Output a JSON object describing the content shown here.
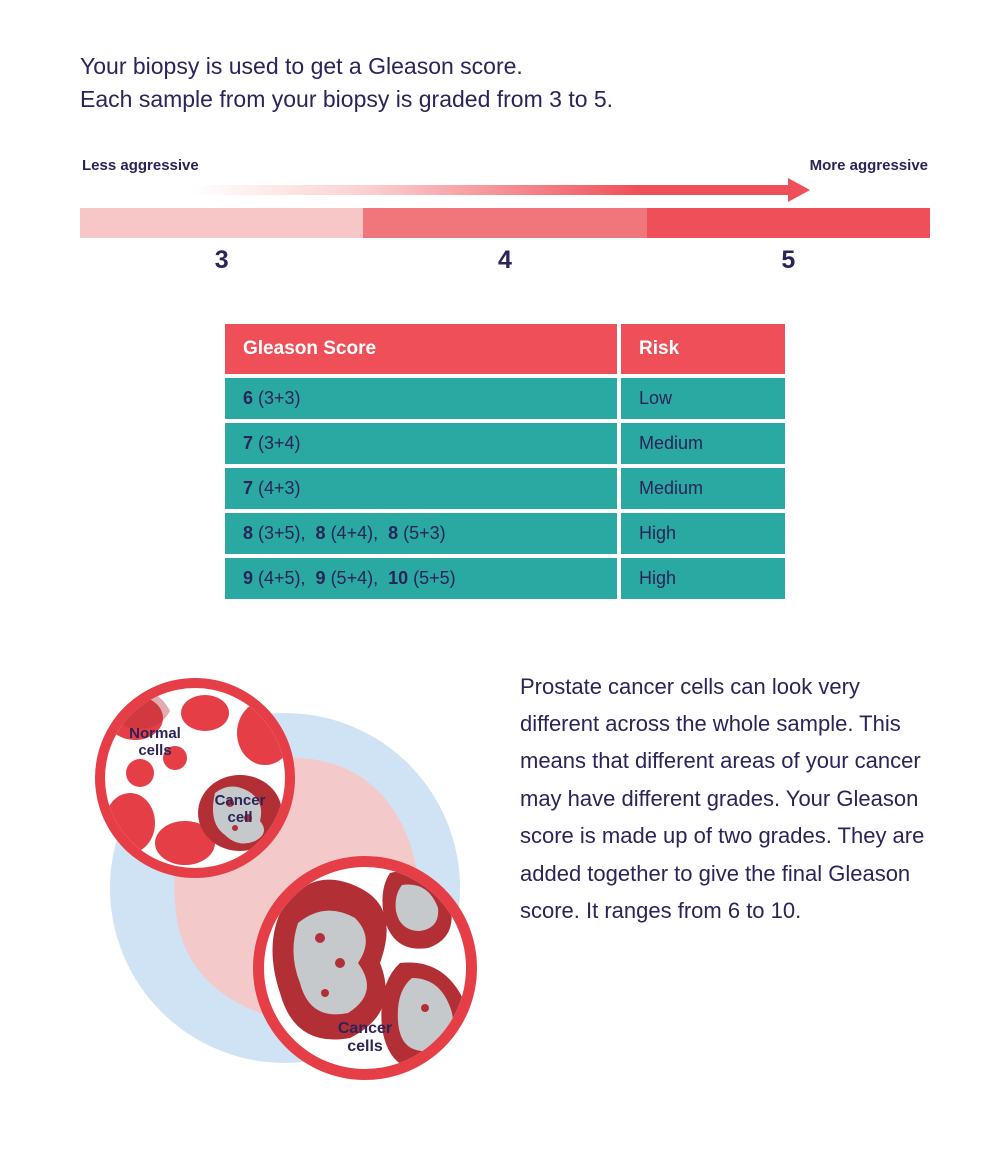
{
  "intro": {
    "line1": "Your biopsy is used to get a Gleason score.",
    "line2": "Each sample from your biopsy is graded from 3 to 5."
  },
  "scale": {
    "left_label": "Less aggressive",
    "right_label": "More aggressive",
    "arrow_gradient_start": "#ffffff",
    "arrow_gradient_mid": "#fbcfd0",
    "arrow_gradient_end": "#ef4f58",
    "segments": [
      {
        "num": "3",
        "color": "#f7c6c7"
      },
      {
        "num": "4",
        "color": "#f1767b"
      },
      {
        "num": "5",
        "color": "#ef4f58"
      }
    ]
  },
  "table": {
    "header_bg": "#ef4f58",
    "header_color": "#ffffff",
    "row_bg": "#2aa9a3",
    "row_color": "#2a2458",
    "col_score": "Gleason Score",
    "col_risk": "Risk",
    "rows": [
      {
        "score_html": "<span class='b'>6</span> (3+3)",
        "risk": "Low"
      },
      {
        "score_html": "<span class='b'>7</span> (3+4)",
        "risk": "Medium"
      },
      {
        "score_html": "<span class='b'>7</span> (4+3)",
        "risk": "Medium"
      },
      {
        "score_html": "<span class='b'>8</span> (3+5),&nbsp; <span class='b'>8</span> (4+4),&nbsp; <span class='b'>8</span> (5+3)",
        "risk": "High"
      },
      {
        "score_html": "<span class='b'>9</span> (4+5),&nbsp; <span class='b'>9</span> (5+4),&nbsp; <span class='b'>10</span> (5+5)",
        "risk": "High"
      }
    ]
  },
  "illustration": {
    "bg_blue": "#cfe3f4",
    "tissue_pink": "#f4c9c9",
    "ring_red": "#e63e47",
    "ring_inner": "#ffffff",
    "cell_red": "#e63e47",
    "cell_darkred": "#b32f36",
    "cell_grey": "#c6c9cc",
    "label_normal_l1": "Normal",
    "label_normal_l2": "cells",
    "label_cancer1_l1": "Cancer",
    "label_cancer1_l2": "cell",
    "label_cancer2_l1": "Cancer",
    "label_cancer2_l2": "cells"
  },
  "explanation": "Prostate cancer cells can look very different across the whole sample. This means that different areas of your cancer may have different grades. Your Gleason score is made up of two grades. They are added together to give the final Gleason score. It ranges from 6 to 10.",
  "colors": {
    "text": "#2a2458",
    "background": "#ffffff"
  }
}
